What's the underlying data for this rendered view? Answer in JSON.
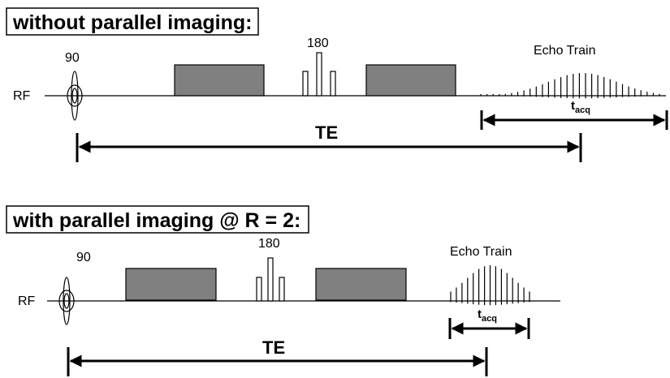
{
  "panels": [
    {
      "title": "without parallel imaging:",
      "rf_label": "RF",
      "pulse90_label": "90",
      "pulse180_label": "180",
      "echo_label": "Echo Train",
      "tacq_main": "t",
      "tacq_sub": "acq",
      "te_label": "TE"
    },
    {
      "title": "with parallel imaging @ R = 2:",
      "rf_label": "RF",
      "pulse90_label": "90",
      "pulse180_label": "180",
      "echo_label": "Echo Train",
      "tacq_main": "t",
      "tacq_sub": "acq",
      "te_label": "TE"
    }
  ]
}
